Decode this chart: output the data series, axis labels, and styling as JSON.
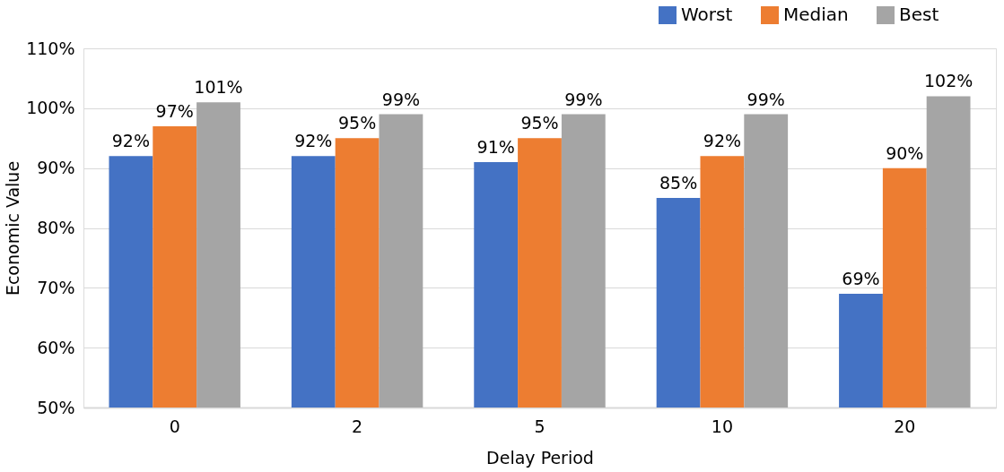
{
  "chart_data": {
    "type": "bar",
    "xlabel": "Delay Period",
    "ylabel": "Economic Value",
    "categories": [
      "0",
      "2",
      "5",
      "10",
      "20"
    ],
    "series": [
      {
        "name": "Worst",
        "color": "#4472c4",
        "values": [
          92,
          92,
          91,
          85,
          69
        ],
        "value_labels": [
          "92%",
          "92%",
          "91%",
          "85%",
          "69%"
        ]
      },
      {
        "name": "Median",
        "color": "#ed7d31",
        "values": [
          97,
          95,
          95,
          92,
          90
        ],
        "value_labels": [
          "97%",
          "95%",
          "95%",
          "92%",
          "90%"
        ]
      },
      {
        "name": "Best",
        "color": "#a5a5a5",
        "values": [
          101,
          99,
          99,
          99,
          102
        ],
        "value_labels": [
          "101%",
          "99%",
          "99%",
          "99%",
          "102%"
        ]
      }
    ],
    "ylim": [
      50,
      110
    ],
    "yticks": [
      {
        "value": 50,
        "label": "50%"
      },
      {
        "value": 60,
        "label": "60%"
      },
      {
        "value": 70,
        "label": "70%"
      },
      {
        "value": 80,
        "label": "80%"
      },
      {
        "value": 90,
        "label": "90%"
      },
      {
        "value": 100,
        "label": "100%"
      },
      {
        "value": 110,
        "label": "110%"
      }
    ],
    "grid": "y",
    "legend": "top right"
  }
}
